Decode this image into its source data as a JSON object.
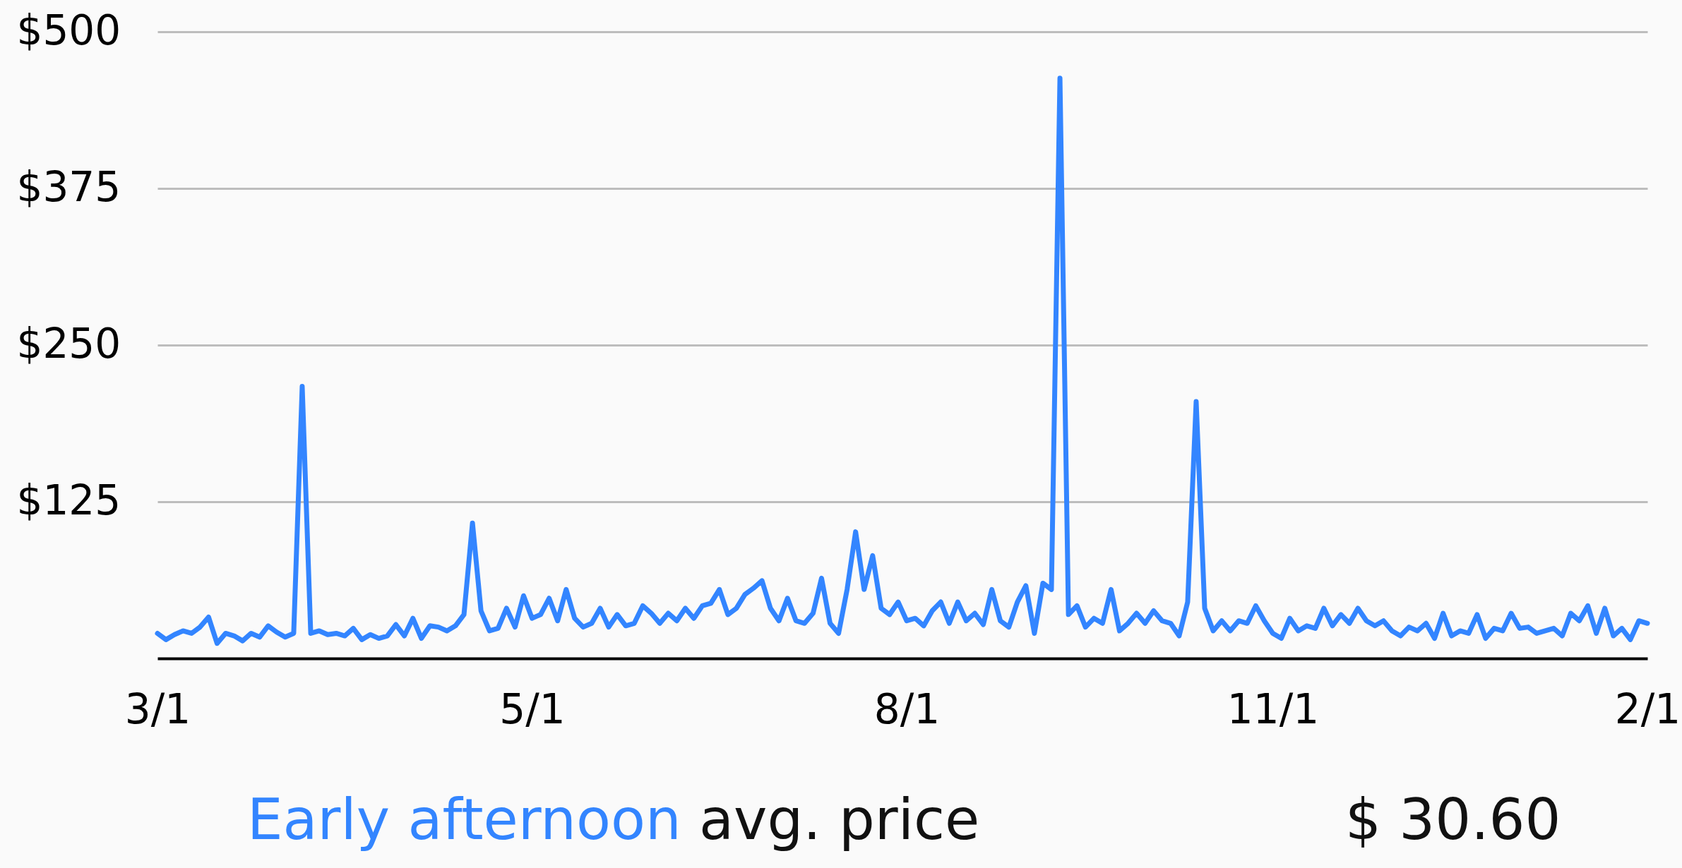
{
  "chart_data": {
    "type": "line",
    "categories": [
      "3/1",
      null,
      null,
      null,
      null,
      null,
      null,
      null,
      null,
      null,
      null,
      null,
      null,
      null,
      null,
      null,
      null,
      null,
      null,
      null,
      null,
      null,
      null,
      null,
      null,
      null,
      null,
      null,
      null,
      null,
      null,
      null,
      null,
      null,
      null,
      null,
      null,
      null,
      null,
      null,
      null,
      null,
      null,
      null,
      "5/1",
      null,
      null,
      null,
      null,
      null,
      null,
      null,
      null,
      null,
      null,
      null,
      null,
      null,
      null,
      null,
      null,
      null,
      null,
      null,
      null,
      null,
      null,
      null,
      null,
      null,
      null,
      null,
      null,
      null,
      null,
      null,
      null,
      null,
      null,
      null,
      null,
      null,
      null,
      null,
      null,
      null,
      null,
      null,
      "8/1",
      null,
      null,
      null,
      null,
      null,
      null,
      null,
      null,
      null,
      null,
      null,
      null,
      null,
      null,
      null,
      null,
      null,
      null,
      null,
      null,
      null,
      null,
      null,
      null,
      null,
      null,
      null,
      null,
      null,
      null,
      null,
      null,
      null,
      null,
      null,
      null,
      null,
      null,
      null,
      null,
      null,
      null,
      "11/1",
      null,
      null,
      null,
      null,
      null,
      null,
      null,
      null,
      null,
      null,
      null,
      null,
      null,
      null,
      null,
      null,
      null,
      null,
      null,
      null,
      null,
      null,
      null,
      null,
      null,
      null,
      null,
      null,
      null,
      null,
      null,
      null,
      null,
      null,
      null,
      null,
      null,
      null,
      null,
      null,
      null,
      null,
      null,
      "2/1"
    ],
    "series": [
      {
        "name": "Early afternoon",
        "color": "#3385ff",
        "values": [
          20,
          15,
          19,
          22,
          20,
          25,
          33,
          12,
          20,
          18,
          14,
          20,
          17,
          26,
          21,
          17,
          20,
          217,
          20,
          22,
          19,
          20,
          18,
          24,
          15,
          19,
          16,
          18,
          27,
          18,
          32,
          16,
          26,
          25,
          22,
          26,
          35,
          108,
          38,
          22,
          24,
          40,
          25,
          50,
          32,
          35,
          48,
          30,
          55,
          32,
          25,
          28,
          40,
          25,
          35,
          26,
          28,
          42,
          36,
          28,
          36,
          30,
          40,
          32,
          42,
          44,
          55,
          35,
          40,
          51,
          56,
          62,
          40,
          30,
          48,
          30,
          28,
          36,
          64,
          28,
          20,
          55,
          101,
          55,
          82,
          40,
          35,
          45,
          30,
          32,
          26,
          38,
          45,
          28,
          45,
          30,
          36,
          27,
          55,
          30,
          25,
          45,
          58,
          20,
          60,
          55,
          463,
          35,
          42,
          25,
          32,
          28,
          55,
          22,
          28,
          36,
          28,
          38,
          30,
          28,
          18,
          45,
          205,
          40,
          22,
          30,
          22,
          30,
          28,
          42,
          30,
          20,
          16,
          32,
          22,
          26,
          24,
          40,
          26,
          35,
          28,
          40,
          30,
          26,
          30,
          22,
          18,
          25,
          22,
          28,
          16,
          36,
          18,
          22,
          20,
          35,
          16,
          24,
          22,
          36,
          24,
          25,
          20,
          22,
          24,
          18,
          36,
          30,
          42,
          20,
          40,
          18,
          24,
          15,
          30,
          28
        ]
      }
    ],
    "ylim": [
      0,
      500
    ],
    "yticks": [
      {
        "value": 125,
        "label": "$125"
      },
      {
        "value": 250,
        "label": "$250"
      },
      {
        "value": 375,
        "label": "$375"
      },
      {
        "value": 500,
        "label": "$500"
      }
    ],
    "grid": "y",
    "annotations": [
      "avg. price",
      "$ 30.60"
    ]
  }
}
